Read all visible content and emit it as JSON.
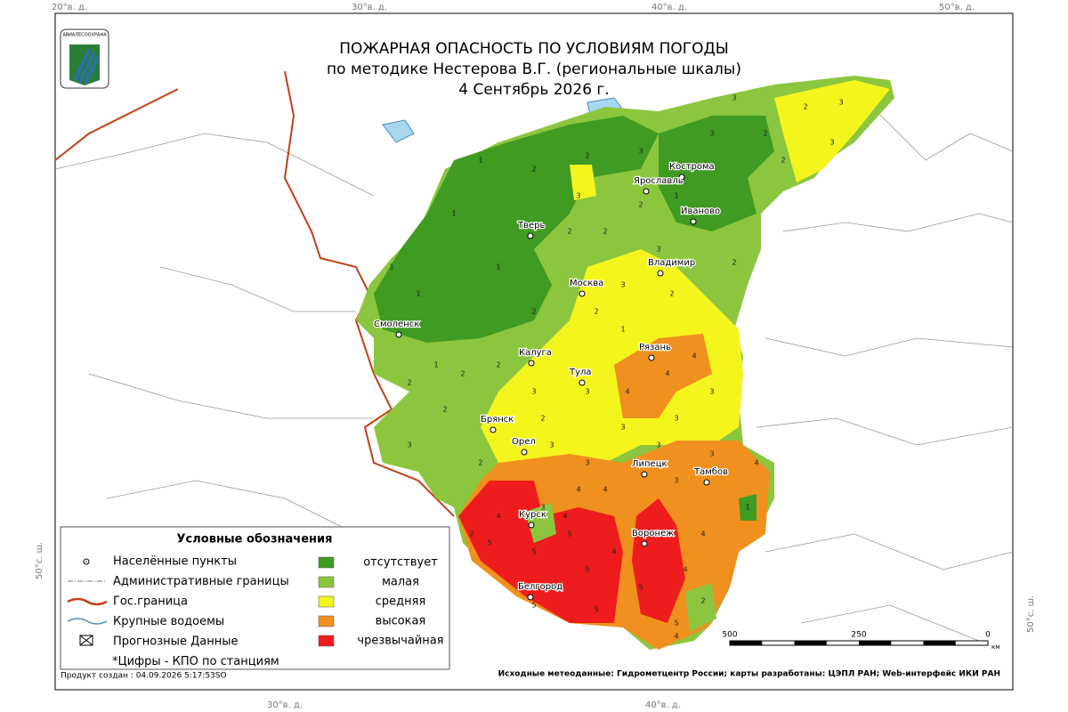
{
  "title": [
    "ПОЖАРНАЯ ОПАСНОСТЬ ПО УСЛОВИЯМ ПОГОДЫ",
    "по методике Нестерова В.Г. (региональные шкалы)",
    "4 Сентябрь 2026 г."
  ],
  "logo": "АВИАЛЕСООХРАНА",
  "graticule": {
    "top": [
      "20°в. д.",
      "30°в. д.",
      "40°в. д.",
      "50°в. д."
    ],
    "bottom": [
      "30°в. д.",
      "40°в. д."
    ],
    "left": "50°с. ш.",
    "right": "50°с. ш."
  },
  "cities": [
    "Кострома",
    "Ярославль",
    "Иваново",
    "Тверь",
    "Владимир",
    "Москва",
    "Смоленск",
    "Рязань",
    "Калуга",
    "Тула",
    "Брянск",
    "Орел",
    "Липецк",
    "Тамбов",
    "Курск",
    "Воронеж",
    "Белгород"
  ],
  "legend": {
    "title": "Условные обозначения",
    "symbols": [
      "Населённые пункты",
      "Административные границы",
      "Гос.граница",
      "Крупные водоемы",
      "Прогнозные Данные",
      "*Цифры - КПО по станциям"
    ],
    "classes": [
      {
        "name": "отсутствует",
        "color": "#3f9b22"
      },
      {
        "name": "малая",
        "color": "#8cc63f"
      },
      {
        "name": "средняя",
        "color": "#f5f51e"
      },
      {
        "name": "высокая",
        "color": "#f0901e"
      },
      {
        "name": "чрезвычайная",
        "color": "#ee1c1c"
      }
    ]
  },
  "scale": {
    "labels": [
      "500",
      "250",
      "0"
    ],
    "unit": "км"
  },
  "footer": {
    "created": "Продукт создан : 04.09.2026 5:17:53SO",
    "source": "Исходные метеоданные: Гидрометцентр России; карты разработаны: ЦЭПЛ РАН; Web-интерфейс ИКИ РАН"
  },
  "stations": {
    "values": [
      1,
      1,
      1,
      1,
      1,
      2,
      2,
      3,
      3,
      1,
      2,
      3,
      2,
      2,
      2,
      3,
      3,
      3,
      2,
      2,
      3,
      2,
      3,
      2,
      1,
      2,
      2,
      1,
      2,
      2,
      2,
      3,
      3,
      4,
      4,
      4,
      3,
      3,
      2,
      3,
      2,
      2,
      3,
      3,
      3,
      3,
      3,
      4,
      4,
      4,
      3,
      1,
      2,
      5,
      5,
      5,
      5,
      4,
      4,
      4,
      4,
      5,
      5,
      2,
      4,
      5,
      5,
      4,
      3,
      4
    ]
  }
}
